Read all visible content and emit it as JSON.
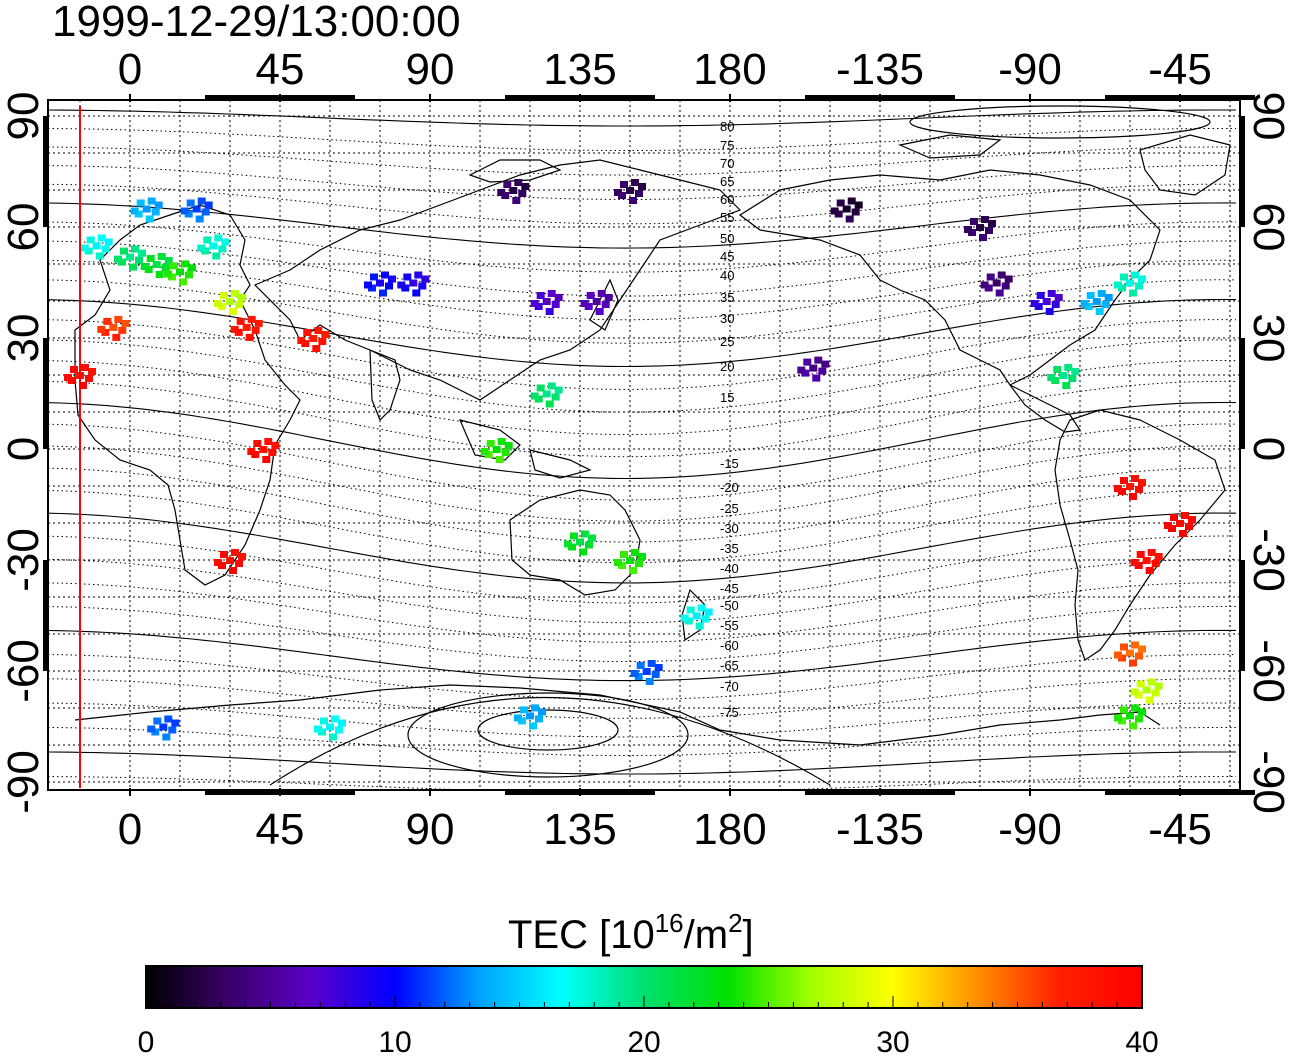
{
  "title": "1999-12-29/13:00:00",
  "map": {
    "x_tick_labels": [
      "0",
      "45",
      "90",
      "135",
      "180",
      "-135",
      "-90",
      "-45"
    ],
    "y_tick_labels": [
      "90",
      "60",
      "30",
      "0",
      "-30",
      "-60",
      "-90"
    ],
    "magnetic_latitude_labels_north": [
      "80",
      "75",
      "70",
      "65",
      "60",
      "55",
      "50",
      "45",
      "40",
      "35",
      "30",
      "25",
      "20",
      "15"
    ],
    "magnetic_latitude_labels_south": [
      "-15",
      "-20",
      "-25",
      "-30",
      "-35",
      "-40",
      "-45",
      "-50",
      "-55",
      "-60",
      "-65",
      "-70",
      "-75"
    ],
    "grid": "dotted",
    "terminator_line_color": "#ff0000"
  },
  "colorbar": {
    "label_prefix": "TEC  [10",
    "label_exp1": "16",
    "label_mid": "/m",
    "label_exp2": "2",
    "label_suffix": "]",
    "tick_labels": [
      "0",
      "10",
      "20",
      "30",
      "40"
    ],
    "min": 0,
    "max": 40,
    "colors": [
      "#000000",
      "#3a0068",
      "#5a00c8",
      "#0000ff",
      "#00a0ff",
      "#00ffff",
      "#00e070",
      "#00e000",
      "#a0ff00",
      "#ffff00",
      "#ff9000",
      "#ff2000",
      "#ff0000"
    ]
  },
  "chart_data": {
    "type": "scatter",
    "title": "1999-12-29/13:00:00",
    "xlabel": "",
    "ylabel": "",
    "colorbar_label": "TEC [10^16/m^2]",
    "xlim": [
      -20,
      350
    ],
    "ylim": [
      -90,
      90
    ],
    "color_range": [
      0,
      40
    ],
    "points": [
      {
        "lon": -10,
        "lat": 55,
        "tec": 17
      },
      {
        "lon": 0,
        "lat": 52,
        "tec": 20
      },
      {
        "lon": 8,
        "lat": 50,
        "tec": 22
      },
      {
        "lon": 15,
        "lat": 48,
        "tec": 24
      },
      {
        "lon": 25,
        "lat": 55,
        "tec": 18
      },
      {
        "lon": 30,
        "lat": 40,
        "tec": 28
      },
      {
        "lon": 35,
        "lat": 33,
        "tec": 38
      },
      {
        "lon": -5,
        "lat": 33,
        "tec": 36
      },
      {
        "lon": 5,
        "lat": 65,
        "tec": 14
      },
      {
        "lon": 20,
        "lat": 65,
        "tec": 12
      },
      {
        "lon": -15,
        "lat": 20,
        "tec": 39
      },
      {
        "lon": 40,
        "lat": 0,
        "tec": 39
      },
      {
        "lon": 30,
        "lat": -30,
        "tec": 39
      },
      {
        "lon": 55,
        "lat": 30,
        "tec": 38
      },
      {
        "lon": 75,
        "lat": 45,
        "tec": 10
      },
      {
        "lon": 85,
        "lat": 45,
        "tec": 9
      },
      {
        "lon": 125,
        "lat": 40,
        "tec": 7
      },
      {
        "lon": 140,
        "lat": 40,
        "tec": 6
      },
      {
        "lon": 115,
        "lat": 70,
        "tec": 3
      },
      {
        "lon": 150,
        "lat": 70,
        "tec": 3
      },
      {
        "lon": 110,
        "lat": 0,
        "tec": 24
      },
      {
        "lon": 125,
        "lat": 15,
        "tec": 20
      },
      {
        "lon": 135,
        "lat": -25,
        "tec": 22
      },
      {
        "lon": 150,
        "lat": -30,
        "tec": 24
      },
      {
        "lon": 170,
        "lat": -45,
        "tec": 17
      },
      {
        "lon": 155,
        "lat": -60,
        "tec": 12
      },
      {
        "lon": 120,
        "lat": -72,
        "tec": 14
      },
      {
        "lon": 60,
        "lat": -75,
        "tec": 17
      },
      {
        "lon": 10,
        "lat": -75,
        "tec": 12
      },
      {
        "lon": 215,
        "lat": 65,
        "tec": 2
      },
      {
        "lon": 255,
        "lat": 60,
        "tec": 3
      },
      {
        "lon": 260,
        "lat": 45,
        "tec": 4
      },
      {
        "lon": 275,
        "lat": 40,
        "tec": 8
      },
      {
        "lon": 290,
        "lat": 40,
        "tec": 14
      },
      {
        "lon": 300,
        "lat": 45,
        "tec": 18
      },
      {
        "lon": 280,
        "lat": 20,
        "tec": 20
      },
      {
        "lon": 205,
        "lat": 22,
        "tec": 5
      },
      {
        "lon": 300,
        "lat": -10,
        "tec": 39
      },
      {
        "lon": 315,
        "lat": -20,
        "tec": 40
      },
      {
        "lon": 305,
        "lat": -30,
        "tec": 39
      },
      {
        "lon": 300,
        "lat": -55,
        "tec": 35
      },
      {
        "lon": 305,
        "lat": -65,
        "tec": 28
      },
      {
        "lon": 300,
        "lat": -72,
        "tec": 24
      }
    ]
  }
}
